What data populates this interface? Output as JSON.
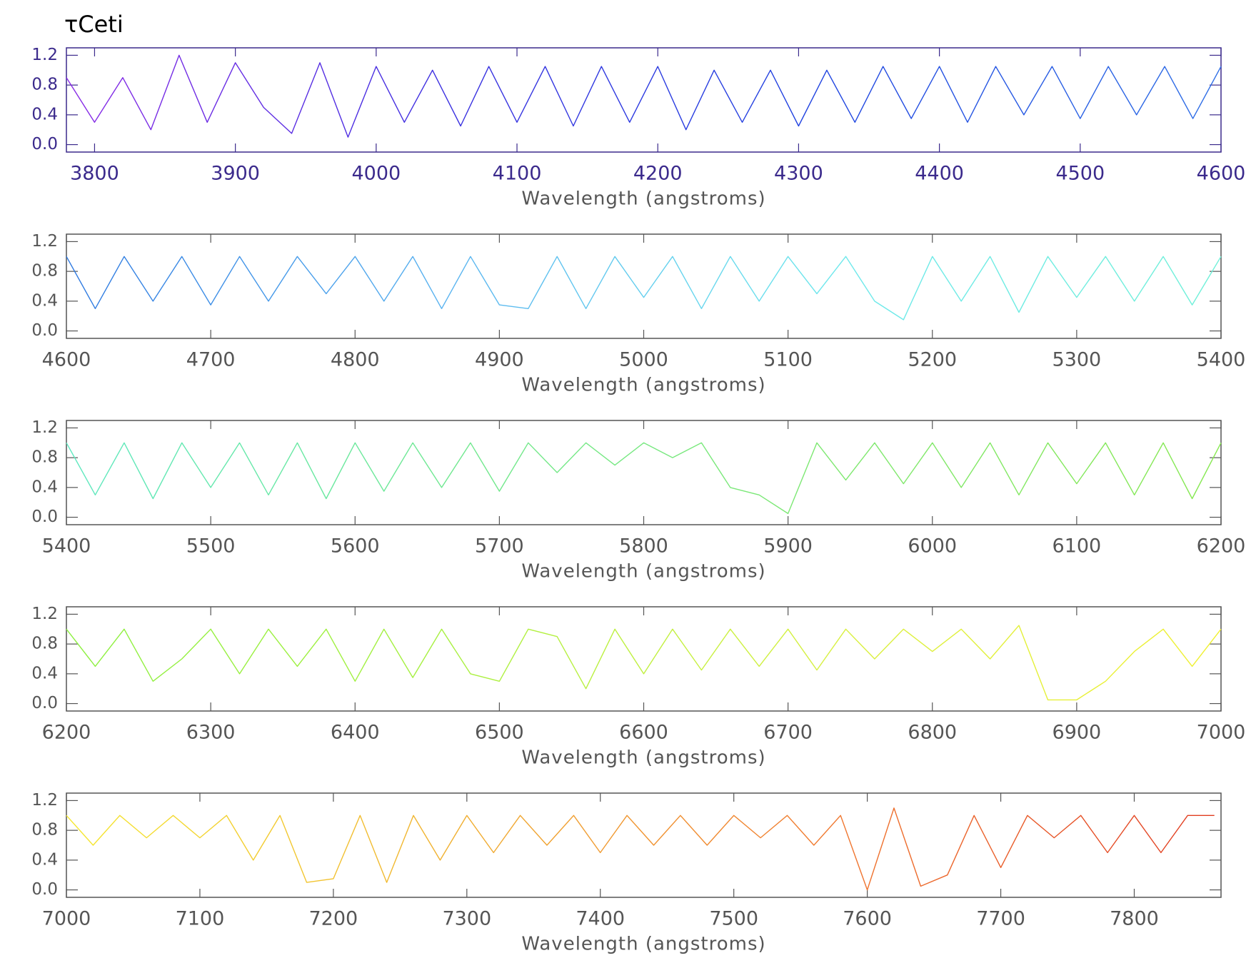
{
  "chart_data": [
    {
      "type": "line",
      "title": "τCeti",
      "xlabel": "Wavelength (angstroms)",
      "axis_color": "#3b2a8c",
      "colors": [
        "#8a2be6",
        "#3a30e0",
        "#1f45e0",
        "#2f6fe6"
      ],
      "xlim": [
        3780,
        4600
      ],
      "xticks": [
        3800,
        3900,
        4000,
        4100,
        4200,
        4300,
        4400,
        4500,
        4600
      ],
      "ylim": [
        -0.1,
        1.3
      ],
      "yticks": [
        {
          "value": 0,
          "label": "0.0"
        },
        0.4,
        0.8,
        1.2
      ],
      "x": [
        3780,
        3800,
        3820,
        3840,
        3860,
        3880,
        3900,
        3920,
        3940,
        3960,
        3980,
        4000,
        4020,
        4040,
        4060,
        4080,
        4100,
        4120,
        4140,
        4160,
        4180,
        4200,
        4220,
        4240,
        4260,
        4280,
        4300,
        4320,
        4340,
        4360,
        4380,
        4400,
        4420,
        4440,
        4460,
        4480,
        4500,
        4520,
        4540,
        4560,
        4580,
        4600
      ],
      "values": [
        0.9,
        0.3,
        0.9,
        0.2,
        1.2,
        0.3,
        1.1,
        0.5,
        0.15,
        1.1,
        0.1,
        1.05,
        0.3,
        1.0,
        0.25,
        1.05,
        0.3,
        1.05,
        0.25,
        1.05,
        0.3,
        1.05,
        0.2,
        1.0,
        0.3,
        1.0,
        0.25,
        1.0,
        0.3,
        1.05,
        0.35,
        1.05,
        0.3,
        1.05,
        0.4,
        1.05,
        0.35,
        1.05,
        0.4,
        1.05,
        0.35,
        1.05
      ]
    },
    {
      "type": "line",
      "xlabel": "Wavelength (angstroms)",
      "axis_color": "#555555",
      "colors": [
        "#2d78e0",
        "#5ab4f0",
        "#6ee8ec",
        "#70f0d8"
      ],
      "xlim": [
        4600,
        5400
      ],
      "xticks": [
        4600,
        4700,
        4800,
        4900,
        5000,
        5100,
        5200,
        5300,
        5400
      ],
      "ylim": [
        -0.1,
        1.3
      ],
      "yticks": [
        {
          "value": 0,
          "label": "0.0"
        },
        0.4,
        0.8,
        1.2
      ],
      "x": [
        4600,
        4620,
        4640,
        4660,
        4680,
        4700,
        4720,
        4740,
        4760,
        4780,
        4800,
        4820,
        4840,
        4860,
        4880,
        4900,
        4920,
        4940,
        4960,
        4980,
        5000,
        5020,
        5040,
        5060,
        5080,
        5100,
        5120,
        5140,
        5160,
        5180,
        5200,
        5220,
        5240,
        5260,
        5280,
        5300,
        5320,
        5340,
        5360,
        5380,
        5400
      ],
      "values": [
        1.0,
        0.3,
        1.0,
        0.4,
        1.0,
        0.35,
        1.0,
        0.4,
        1.0,
        0.5,
        1.0,
        0.4,
        1.0,
        0.3,
        1.0,
        0.35,
        0.3,
        1.0,
        0.3,
        1.0,
        0.45,
        1.0,
        0.3,
        1.0,
        0.4,
        1.0,
        0.5,
        1.0,
        0.4,
        0.15,
        1.0,
        0.4,
        1.0,
        0.25,
        1.0,
        0.45,
        1.0,
        0.4,
        1.0,
        0.35,
        1.0
      ]
    },
    {
      "type": "line",
      "xlabel": "Wavelength (angstroms)",
      "axis_color": "#555555",
      "colors": [
        "#5ee8c0",
        "#70e890",
        "#7ee870",
        "#86e850"
      ],
      "xlim": [
        5400,
        6200
      ],
      "xticks": [
        5400,
        5500,
        5600,
        5700,
        5800,
        5900,
        6000,
        6100,
        6200
      ],
      "ylim": [
        -0.1,
        1.3
      ],
      "yticks": [
        {
          "value": 0,
          "label": "0.0"
        },
        0.4,
        0.8,
        1.2
      ],
      "x": [
        5400,
        5420,
        5440,
        5460,
        5480,
        5500,
        5520,
        5540,
        5560,
        5580,
        5600,
        5620,
        5640,
        5660,
        5680,
        5700,
        5720,
        5740,
        5760,
        5780,
        5800,
        5820,
        5840,
        5860,
        5880,
        5900,
        5920,
        5940,
        5960,
        5980,
        6000,
        6020,
        6040,
        6060,
        6080,
        6100,
        6120,
        6140,
        6160,
        6180,
        6200
      ],
      "values": [
        1.0,
        0.3,
        1.0,
        0.25,
        1.0,
        0.4,
        1.0,
        0.3,
        1.0,
        0.25,
        1.0,
        0.35,
        1.0,
        0.4,
        1.0,
        0.35,
        1.0,
        0.6,
        1.0,
        0.7,
        1.0,
        0.8,
        1.0,
        0.4,
        0.3,
        0.05,
        1.0,
        0.5,
        1.0,
        0.45,
        1.0,
        0.4,
        1.0,
        0.3,
        1.0,
        0.45,
        1.0,
        0.3,
        1.0,
        0.25,
        1.0
      ]
    },
    {
      "type": "line",
      "xlabel": "Wavelength (angstroms)",
      "axis_color": "#555555",
      "colors": [
        "#8cf040",
        "#a8f040",
        "#d8f040",
        "#f0f030"
      ],
      "xlim": [
        6200,
        7000
      ],
      "xticks": [
        6200,
        6300,
        6400,
        6500,
        6600,
        6700,
        6800,
        6900,
        7000
      ],
      "ylim": [
        -0.1,
        1.3
      ],
      "yticks": [
        {
          "value": 0,
          "label": "0.0"
        },
        0.4,
        0.8,
        1.2
      ],
      "x": [
        6200,
        6220,
        6240,
        6260,
        6280,
        6300,
        6320,
        6340,
        6360,
        6380,
        6400,
        6420,
        6440,
        6460,
        6480,
        6500,
        6520,
        6540,
        6560,
        6580,
        6600,
        6620,
        6640,
        6660,
        6680,
        6700,
        6720,
        6740,
        6760,
        6780,
        6800,
        6820,
        6840,
        6860,
        6880,
        6900,
        6920,
        6940,
        6960,
        6980,
        7000
      ],
      "values": [
        1.0,
        0.5,
        1.0,
        0.3,
        0.6,
        1.0,
        0.4,
        1.0,
        0.5,
        1.0,
        0.3,
        1.0,
        0.35,
        1.0,
        0.4,
        0.3,
        1.0,
        0.9,
        0.2,
        1.0,
        0.4,
        1.0,
        0.45,
        1.0,
        0.5,
        1.0,
        0.45,
        1.0,
        0.6,
        1.0,
        0.7,
        1.0,
        0.6,
        1.05,
        0.05,
        0.05,
        0.3,
        0.7,
        1.0,
        0.5,
        1.0
      ]
    },
    {
      "type": "line",
      "xlabel": "Wavelength (angstroms)",
      "axis_color": "#555555",
      "colors": [
        "#f5e830",
        "#f0b030",
        "#f07830",
        "#e03a20"
      ],
      "xlim": [
        7000,
        7865
      ],
      "xticks": [
        7000,
        7100,
        7200,
        7300,
        7400,
        7500,
        7600,
        7700,
        7800
      ],
      "ylim": [
        -0.1,
        1.3
      ],
      "yticks": [
        {
          "value": 0,
          "label": "0.0"
        },
        0.4,
        0.8,
        1.2
      ],
      "x": [
        7000,
        7020,
        7040,
        7060,
        7080,
        7100,
        7120,
        7140,
        7160,
        7180,
        7200,
        7220,
        7240,
        7260,
        7280,
        7300,
        7320,
        7340,
        7360,
        7380,
        7400,
        7420,
        7440,
        7460,
        7480,
        7500,
        7520,
        7540,
        7560,
        7580,
        7600,
        7620,
        7640,
        7660,
        7680,
        7700,
        7720,
        7740,
        7760,
        7780,
        7800,
        7820,
        7840,
        7860
      ],
      "values": [
        1.0,
        0.6,
        1.0,
        0.7,
        1.0,
        0.7,
        1.0,
        0.4,
        1.0,
        0.1,
        0.15,
        1.0,
        0.1,
        1.0,
        0.4,
        1.0,
        0.5,
        1.0,
        0.6,
        1.0,
        0.5,
        1.0,
        0.6,
        1.0,
        0.6,
        1.0,
        0.7,
        1.0,
        0.6,
        1.0,
        0.0,
        1.1,
        0.05,
        0.2,
        1.0,
        0.3,
        1.0,
        0.7,
        1.0,
        0.5,
        1.0,
        0.5,
        1.0,
        1.0
      ]
    }
  ]
}
